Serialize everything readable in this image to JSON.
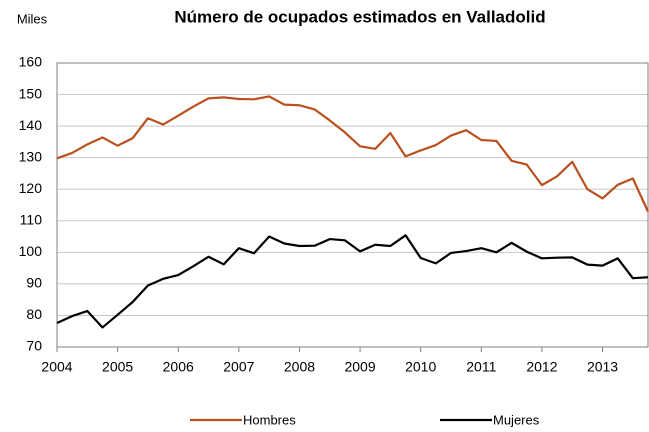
{
  "chart_data": {
    "type": "line",
    "title": "Número de ocupados estimados en  Valladolid",
    "y_label": "Miles",
    "categories": [
      "2004",
      null,
      null,
      null,
      "2005",
      null,
      null,
      null,
      "2006",
      null,
      null,
      null,
      "2007",
      null,
      null,
      null,
      "2008",
      null,
      null,
      null,
      "2009",
      null,
      null,
      null,
      "2010",
      null,
      null,
      null,
      "2011",
      null,
      null,
      null,
      "2012",
      null,
      null,
      null,
      "2013",
      null,
      null,
      null
    ],
    "series": [
      {
        "name": "Hombres",
        "color": "#b9501e",
        "values": [
          129.8,
          131.5,
          134.2,
          136.4,
          133.8,
          136.2,
          142.5,
          140.5,
          143.3,
          146.2,
          148.8,
          149.1,
          148.6,
          148.5,
          149.4,
          146.8,
          146.6,
          145.3,
          141.8,
          138.0,
          133.6,
          132.8,
          137.8,
          130.4,
          132.3,
          134.0,
          137.0,
          138.7,
          135.6,
          135.3,
          129.0,
          127.8,
          121.3,
          124.1,
          128.7,
          120.0,
          117.1,
          121.4,
          123.4,
          112.9
        ]
      },
      {
        "name": "Mujeres",
        "color": "#000000",
        "values": [
          77.6,
          79.8,
          81.4,
          76.2,
          80.2,
          84.3,
          89.5,
          91.6,
          92.8,
          95.6,
          98.6,
          96.2,
          101.3,
          99.7,
          105.0,
          102.8,
          102.0,
          102.1,
          104.2,
          103.8,
          100.3,
          102.4,
          102.0,
          105.4,
          98.2,
          96.5,
          99.8,
          100.4,
          101.3,
          100.0,
          103.0,
          100.2,
          98.1,
          98.3,
          98.4,
          96.1,
          95.8,
          98.1,
          91.8,
          92.1
        ]
      }
    ],
    "ylim": [
      70,
      160
    ],
    "yticks": [
      70,
      80,
      90,
      100,
      110,
      120,
      130,
      140,
      150,
      160
    ],
    "grid": true,
    "legend": "bottom"
  }
}
